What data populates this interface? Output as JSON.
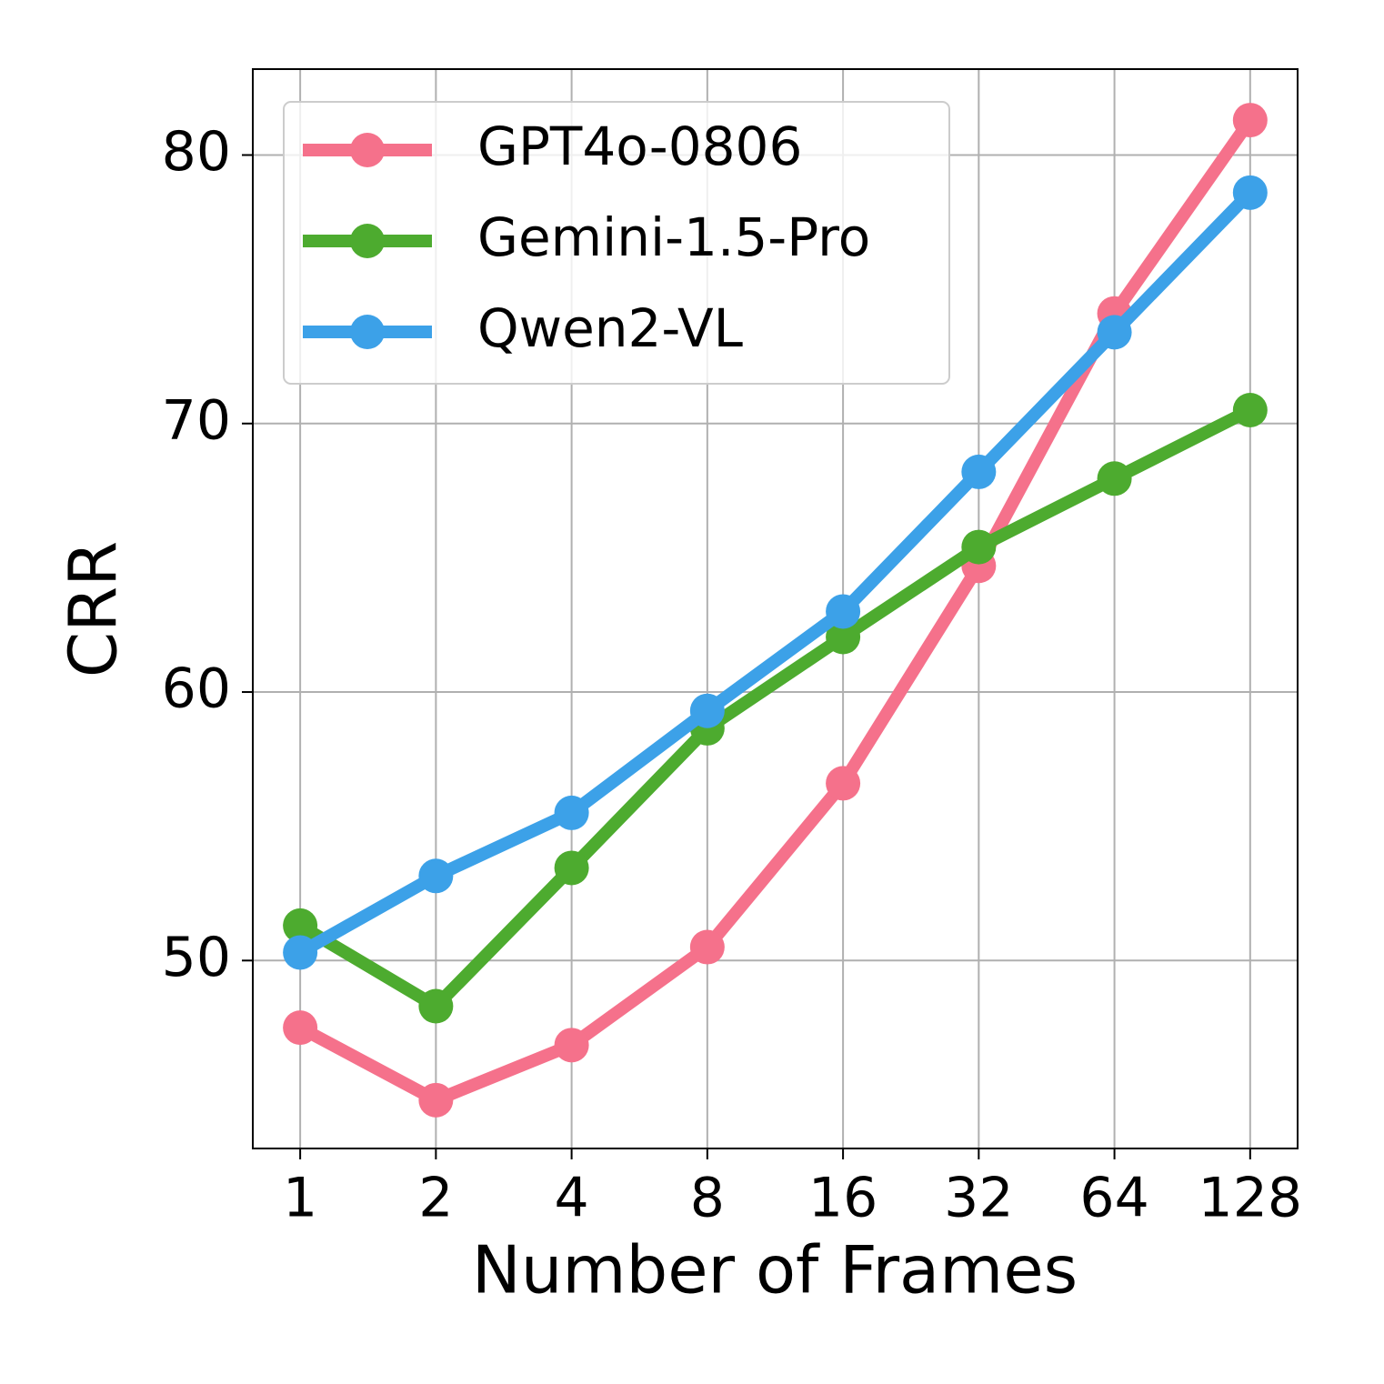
{
  "chart_data": {
    "type": "line",
    "x_label": "Number of Frames",
    "y_label": "CRR",
    "x": [
      1,
      2,
      4,
      8,
      16,
      32,
      64,
      128
    ],
    "xscale": "log",
    "xlim": [
      0.785,
      163.1
    ],
    "xticks": [
      1,
      2,
      4,
      8,
      16,
      32,
      64,
      128
    ],
    "ylim": [
      43.0,
      83.2
    ],
    "yticks": [
      50,
      60,
      70,
      80
    ],
    "grid": true,
    "legend": "upper left",
    "series": [
      {
        "name": "GPT4o-0806",
        "color": "#f5718b",
        "values": [
          47.5,
          44.8,
          46.85,
          50.5,
          56.6,
          64.7,
          74.1,
          81.3
        ]
      },
      {
        "name": "Gemini-1.5-Pro",
        "color": "#4dab2f",
        "values": [
          51.3,
          48.3,
          53.45,
          58.65,
          62.05,
          65.4,
          67.95,
          70.5
        ]
      },
      {
        "name": "Qwen2-VL",
        "color": "#3ca1e8",
        "values": [
          50.3,
          53.15,
          55.5,
          59.3,
          63.0,
          68.2,
          73.4,
          78.6
        ]
      }
    ]
  }
}
